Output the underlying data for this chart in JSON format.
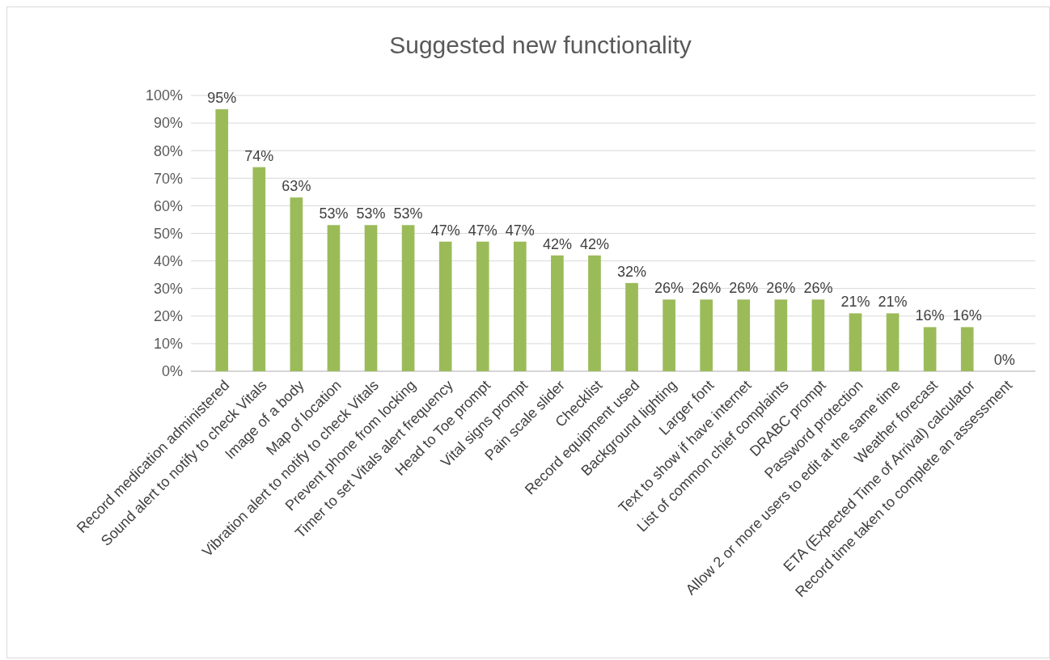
{
  "chart_data": {
    "type": "bar",
    "title": "Suggested new functionality",
    "categories": [
      "Record medication administered",
      "Sound alert to notify to check Vitals",
      "Image of a body",
      "Map of location",
      "Vibration alert to notify to check Vitals",
      "Prevent phone from locking",
      "Timer to set Vitals alert frequency",
      "Head to Toe prompt",
      "Vital signs prompt",
      "Pain scale slider",
      "Checklist",
      "Record equipment used",
      "Background lighting",
      "Larger font",
      "Text to show if have internet",
      "List of common chief complaints",
      "DRABC prompt",
      "Password protection",
      "Allow 2 or more users to edit at the same time",
      "Weather forecast",
      "ETA (Expected Time of Arrival) calculator",
      "Record time taken to complete an assessment"
    ],
    "values": [
      95,
      74,
      63,
      53,
      53,
      53,
      47,
      47,
      47,
      42,
      42,
      32,
      26,
      26,
      26,
      26,
      26,
      21,
      21,
      16,
      16,
      0
    ],
    "value_labels": [
      "95%",
      "74%",
      "63%",
      "53%",
      "53%",
      "53%",
      "47%",
      "47%",
      "47%",
      "42%",
      "42%",
      "32%",
      "26%",
      "26%",
      "26%",
      "26%",
      "26%",
      "21%",
      "21%",
      "16%",
      "16%",
      "0%"
    ],
    "color": "#9bbb59",
    "ylim": [
      0,
      100
    ],
    "yticks": [
      {
        "value": 0,
        "label": "0%"
      },
      {
        "value": 10,
        "label": "10%"
      },
      {
        "value": 20,
        "label": "20%"
      },
      {
        "value": 30,
        "label": "30%"
      },
      {
        "value": 40,
        "label": "40%"
      },
      {
        "value": 50,
        "label": "50%"
      },
      {
        "value": 60,
        "label": "60%"
      },
      {
        "value": 70,
        "label": "70%"
      },
      {
        "value": 80,
        "label": "80%"
      },
      {
        "value": 90,
        "label": "90%"
      },
      {
        "value": 100,
        "label": "100%"
      }
    ],
    "grid": "y"
  }
}
